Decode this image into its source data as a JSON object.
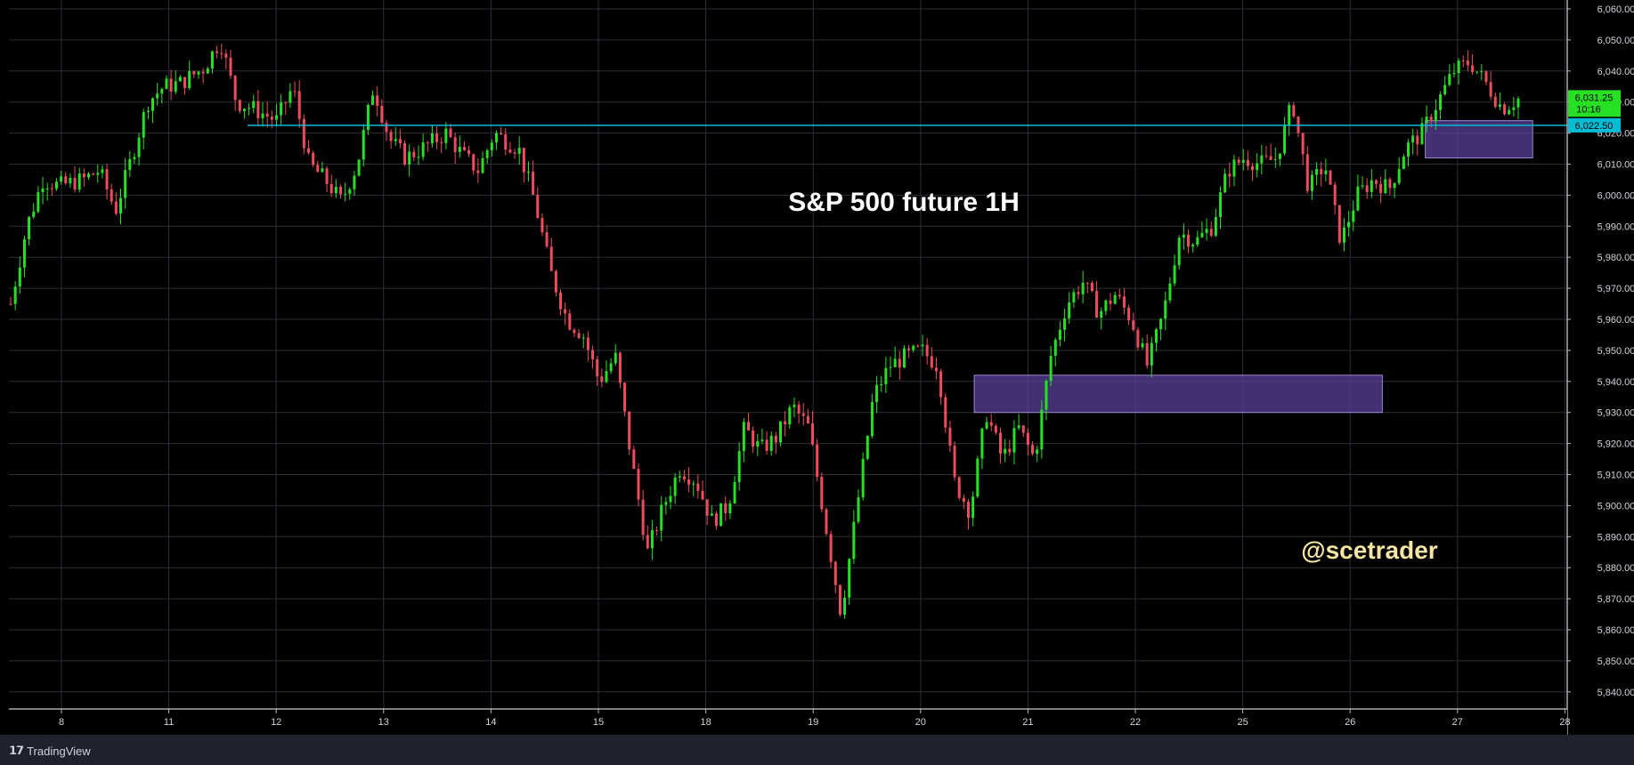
{
  "chart_data": {
    "type": "candlestick",
    "title": "S&P 500 future 1H",
    "watermark_handle": "@scetrader",
    "ylim": [
      5835,
      6062
    ],
    "y_ticks": [
      "6,060.00",
      "6,050.00",
      "6,040.00",
      "6,030.00",
      "6,020.00",
      "6,010.00",
      "6,000.00",
      "5,990.00",
      "5,980.00",
      "5,970.00",
      "5,960.00",
      "5,950.00",
      "5,940.00",
      "5,930.00",
      "5,920.00",
      "5,910.00",
      "5,900.00",
      "5,890.00",
      "5,880.00",
      "5,870.00",
      "5,860.00",
      "5,850.00",
      "5,840.00"
    ],
    "x_ticks": [
      "8",
      "11",
      "12",
      "13",
      "14",
      "15",
      "18",
      "19",
      "20",
      "21",
      "22",
      "25",
      "26",
      "27",
      "28"
    ],
    "price_labels": {
      "last_price": "6,031.25",
      "countdown": "10:16",
      "line_level": "6,022.50"
    },
    "horizontal_line": 6022.5,
    "zones": [
      {
        "from_day": "20.5",
        "to_day": "26.3",
        "low": 5930,
        "high": 5942
      },
      {
        "from_day": "26.7",
        "to_day": "27.7",
        "low": 6012,
        "high": 6024
      }
    ],
    "price_path": [
      {
        "d": 7.5,
        "p": 5965
      },
      {
        "d": 7.7,
        "p": 5990
      },
      {
        "d": 7.9,
        "p": 6005
      },
      {
        "d": 8.1,
        "p": 6003
      },
      {
        "d": 8.4,
        "p": 6005
      },
      {
        "d": 8.6,
        "p": 6008
      },
      {
        "d": 8.8,
        "p": 5995
      },
      {
        "d": 9.0,
        "p": 6012
      },
      {
        "d": 9.2,
        "p": 6030
      },
      {
        "d": 9.4,
        "p": 6035
      },
      {
        "d": 9.6,
        "p": 6036
      },
      {
        "d": 9.9,
        "p": 6041
      },
      {
        "d": 10.1,
        "p": 6050
      },
      {
        "d": 10.3,
        "p": 6030
      },
      {
        "d": 10.5,
        "p": 6028
      },
      {
        "d": 10.8,
        "p": 6024
      },
      {
        "d": 11.0,
        "p": 6035
      },
      {
        "d": 11.2,
        "p": 6010
      },
      {
        "d": 11.4,
        "p": 6005
      },
      {
        "d": 11.6,
        "p": 5998
      },
      {
        "d": 11.8,
        "p": 6010
      },
      {
        "d": 12.0,
        "p": 6035
      },
      {
        "d": 12.2,
        "p": 6018
      },
      {
        "d": 12.4,
        "p": 6012
      },
      {
        "d": 12.6,
        "p": 6015
      },
      {
        "d": 12.9,
        "p": 6020
      },
      {
        "d": 13.1,
        "p": 6013
      },
      {
        "d": 13.3,
        "p": 6008
      },
      {
        "d": 13.5,
        "p": 6020
      },
      {
        "d": 13.8,
        "p": 6015
      },
      {
        "d": 14.0,
        "p": 5998
      },
      {
        "d": 14.2,
        "p": 5975
      },
      {
        "d": 14.4,
        "p": 5960
      },
      {
        "d": 14.6,
        "p": 5955
      },
      {
        "d": 14.8,
        "p": 5940
      },
      {
        "d": 15.0,
        "p": 5948
      },
      {
        "d": 15.2,
        "p": 5915
      },
      {
        "d": 15.4,
        "p": 5885
      },
      {
        "d": 15.6,
        "p": 5900
      },
      {
        "d": 15.8,
        "p": 5912
      },
      {
        "d": 16.0,
        "p": 5908
      },
      {
        "d": 16.2,
        "p": 5895
      },
      {
        "d": 16.4,
        "p": 5900
      },
      {
        "d": 16.6,
        "p": 5925
      },
      {
        "d": 16.8,
        "p": 5918
      },
      {
        "d": 17.0,
        "p": 5922
      },
      {
        "d": 17.2,
        "p": 5932
      },
      {
        "d": 17.4,
        "p": 5925
      },
      {
        "d": 17.6,
        "p": 5895
      },
      {
        "d": 17.8,
        "p": 5865
      },
      {
        "d": 18.0,
        "p": 5900
      },
      {
        "d": 18.2,
        "p": 5935
      },
      {
        "d": 18.4,
        "p": 5945
      },
      {
        "d": 18.6,
        "p": 5948
      },
      {
        "d": 18.8,
        "p": 5950
      },
      {
        "d": 19.0,
        "p": 5945
      },
      {
        "d": 19.2,
        "p": 5908
      },
      {
        "d": 19.4,
        "p": 5898
      },
      {
        "d": 19.6,
        "p": 5930
      },
      {
        "d": 19.8,
        "p": 5915
      },
      {
        "d": 20.0,
        "p": 5925
      },
      {
        "d": 20.2,
        "p": 5915
      },
      {
        "d": 20.4,
        "p": 5948
      },
      {
        "d": 20.6,
        "p": 5965
      },
      {
        "d": 20.8,
        "p": 5972
      },
      {
        "d": 21.0,
        "p": 5962
      },
      {
        "d": 21.2,
        "p": 5968
      },
      {
        "d": 21.4,
        "p": 5960
      },
      {
        "d": 21.6,
        "p": 5945
      },
      {
        "d": 21.8,
        "p": 5962
      },
      {
        "d": 22.0,
        "p": 5988
      },
      {
        "d": 22.2,
        "p": 5985
      },
      {
        "d": 22.4,
        "p": 5990
      },
      {
        "d": 22.6,
        "p": 6008
      },
      {
        "d": 22.8,
        "p": 6012
      },
      {
        "d": 23.0,
        "p": 6010
      },
      {
        "d": 23.2,
        "p": 6012
      },
      {
        "d": 23.4,
        "p": 6030
      },
      {
        "d": 23.6,
        "p": 6002
      },
      {
        "d": 23.8,
        "p": 6010
      },
      {
        "d": 24.0,
        "p": 5985
      },
      {
        "d": 24.2,
        "p": 6000
      },
      {
        "d": 24.4,
        "p": 6005
      },
      {
        "d": 24.6,
        "p": 6002
      },
      {
        "d": 24.8,
        "p": 6015
      },
      {
        "d": 25.0,
        "p": 6020
      },
      {
        "d": 25.2,
        "p": 6030
      },
      {
        "d": 25.4,
        "p": 6040
      },
      {
        "d": 25.6,
        "p": 6043
      },
      {
        "d": 25.8,
        "p": 6036
      },
      {
        "d": 26.0,
        "p": 6028
      },
      {
        "d": 26.2,
        "p": 6031
      }
    ],
    "day_positions": {
      "8": 0,
      "11": 1,
      "12": 2,
      "13": 3,
      "14": 4,
      "15": 5,
      "18": 6,
      "19": 7,
      "20": 8,
      "21": 9,
      "22": 10,
      "25": 11,
      "26": 12,
      "27": 13,
      "28": 14
    },
    "colors": {
      "background": "#000000",
      "grid": "#2a2e39",
      "up": "#26e023",
      "down": "#ef4b5f",
      "line": "#00bcd4",
      "zone_fill": "#5b3f9a",
      "zone_border": "#9b87d6",
      "last_price_bg": "#26e023",
      "line_label_bg": "#00bcd4",
      "watermark": "#f6e5a3"
    }
  },
  "footer": {
    "brand": "TradingView"
  }
}
